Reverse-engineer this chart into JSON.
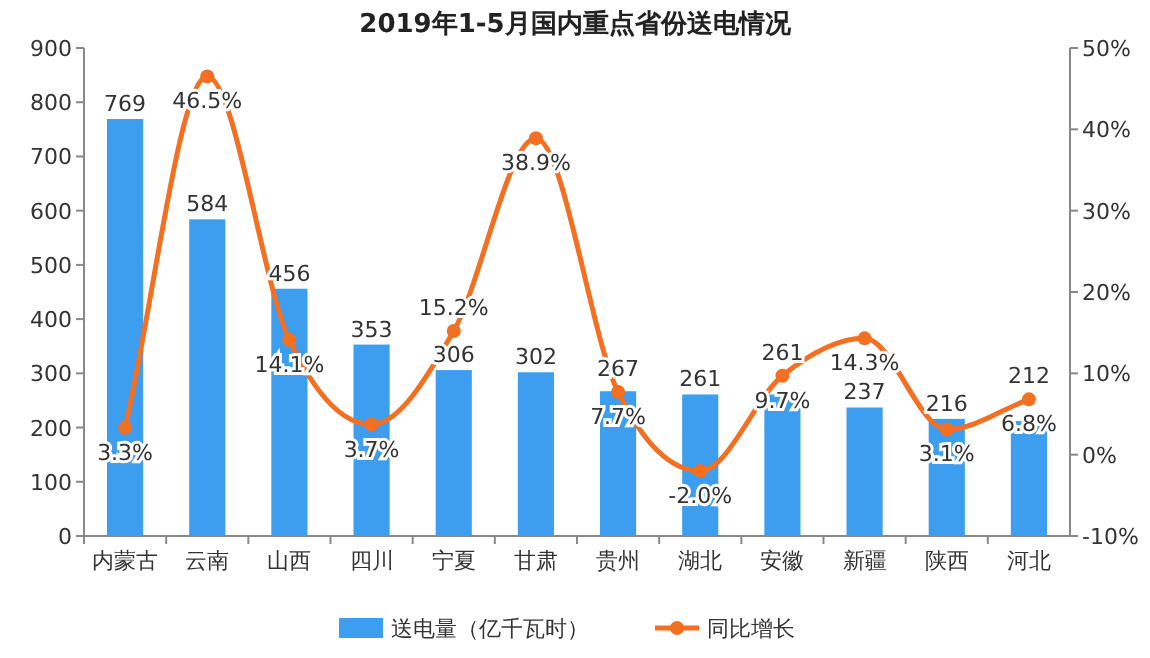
{
  "chart_data": {
    "type": "bar",
    "title": "2019年1-5月国内重点省份送电情况",
    "categories": [
      "内蒙古",
      "云南",
      "山西",
      "四川",
      "宁夏",
      "甘肃",
      "贵州",
      "湖北",
      "安徽",
      "新疆",
      "陕西",
      "河北"
    ],
    "series": [
      {
        "name": "送电量（亿千瓦时）",
        "type": "bar",
        "color": "#3d9ef0",
        "values": [
          769,
          584,
          456,
          353,
          306,
          302,
          267,
          261,
          261,
          237,
          216,
          212
        ],
        "value_labels": [
          "769",
          "584",
          "456",
          "353",
          "306",
          "302",
          "267",
          "261",
          "261",
          "237",
          "216",
          "212"
        ]
      },
      {
        "name": "同比增长",
        "type": "line",
        "axis": "y2",
        "color": "#f36f21",
        "marker": "circle",
        "values": [
          3.3,
          46.5,
          14.1,
          3.7,
          15.2,
          38.9,
          7.7,
          -2.0,
          9.7,
          14.3,
          3.1,
          6.8
        ],
        "value_labels": [
          "3.3%",
          "46.5%",
          "14.1%",
          "3.7%",
          "15.2%",
          "38.9%",
          "7.7%",
          "-2.0%",
          "9.7%",
          "14.3%",
          "3.1%",
          "6.8%"
        ]
      }
    ],
    "ylim": [
      0,
      900
    ],
    "yticks": [
      0,
      100,
      200,
      300,
      400,
      500,
      600,
      700,
      800,
      900
    ],
    "y2lim": [
      -10,
      50
    ],
    "y2ticks": [
      {
        "value": -10,
        "label": "-10%"
      },
      {
        "value": 0,
        "label": "0%"
      },
      {
        "value": 10,
        "label": "10%"
      },
      {
        "value": 20,
        "label": "20%"
      },
      {
        "value": 30,
        "label": "30%"
      },
      {
        "value": 40,
        "label": "40%"
      },
      {
        "value": 50,
        "label": "50%"
      }
    ],
    "legend": "bottom"
  }
}
